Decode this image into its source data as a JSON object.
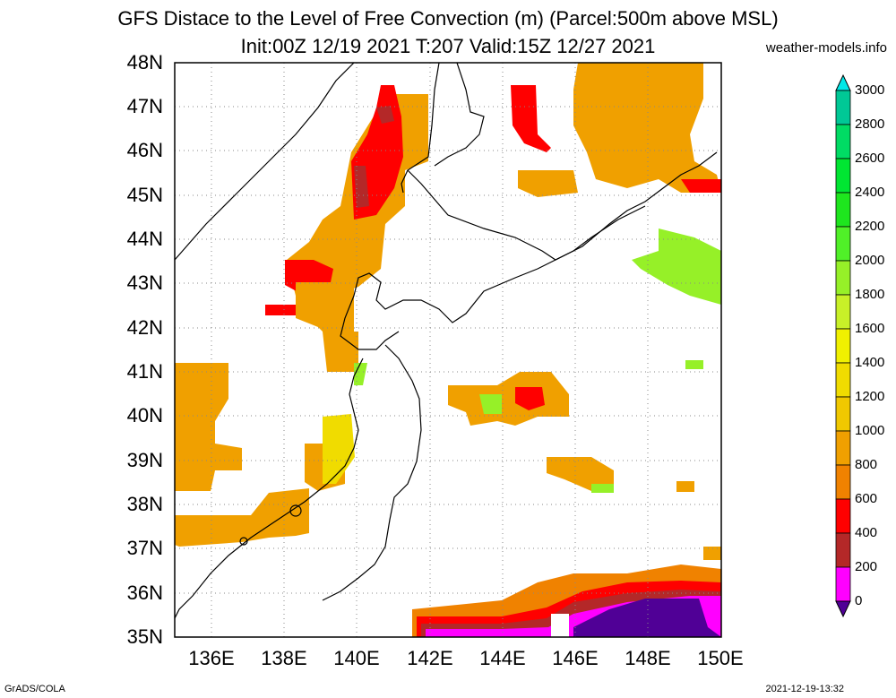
{
  "title_line1": "GFS Distace to the Level of Free Convection (m) (Parcel:500m above MSL)",
  "title_line2": "Init:00Z 12/19 2021 T:207 Valid:15Z 12/27 2021",
  "site": "weather-models.info",
  "footer_left": "GrADS/COLA",
  "footer_right": "2021-12-19-13:32",
  "y_ticks": [
    "48N",
    "47N",
    "46N",
    "45N",
    "44N",
    "43N",
    "42N",
    "41N",
    "40N",
    "39N",
    "38N",
    "37N",
    "36N",
    "35N"
  ],
  "x_ticks": [
    "136E",
    "138E",
    "140E",
    "142E",
    "144E",
    "146E",
    "148E",
    "150E"
  ],
  "map_extent": {
    "lon": [
      135,
      150
    ],
    "lat": [
      35,
      48
    ]
  },
  "colorbar": {
    "labels": [
      "3000",
      "2800",
      "2600",
      "2400",
      "2200",
      "2000",
      "1800",
      "1600",
      "1400",
      "1200",
      "1000",
      "800",
      "600",
      "400",
      "200",
      "0"
    ],
    "colors": [
      "#00e8e8",
      "#00c896",
      "#00dc64",
      "#00e632",
      "#1ee61e",
      "#50f028",
      "#96f028",
      "#c8f028",
      "#f0f000",
      "#f0dc00",
      "#f0c800",
      "#f0a000",
      "#f08200",
      "#ff0000",
      "#b42828",
      "#ff00ff",
      "#500096"
    ]
  },
  "field_colors": {
    "orange": "#f0a000",
    "darkorange": "#f08200",
    "yellow": "#f0dc00",
    "red": "#ff0000",
    "brown": "#b42828",
    "magenta": "#ff00ff",
    "purple": "#500096",
    "lime": "#96f028"
  }
}
